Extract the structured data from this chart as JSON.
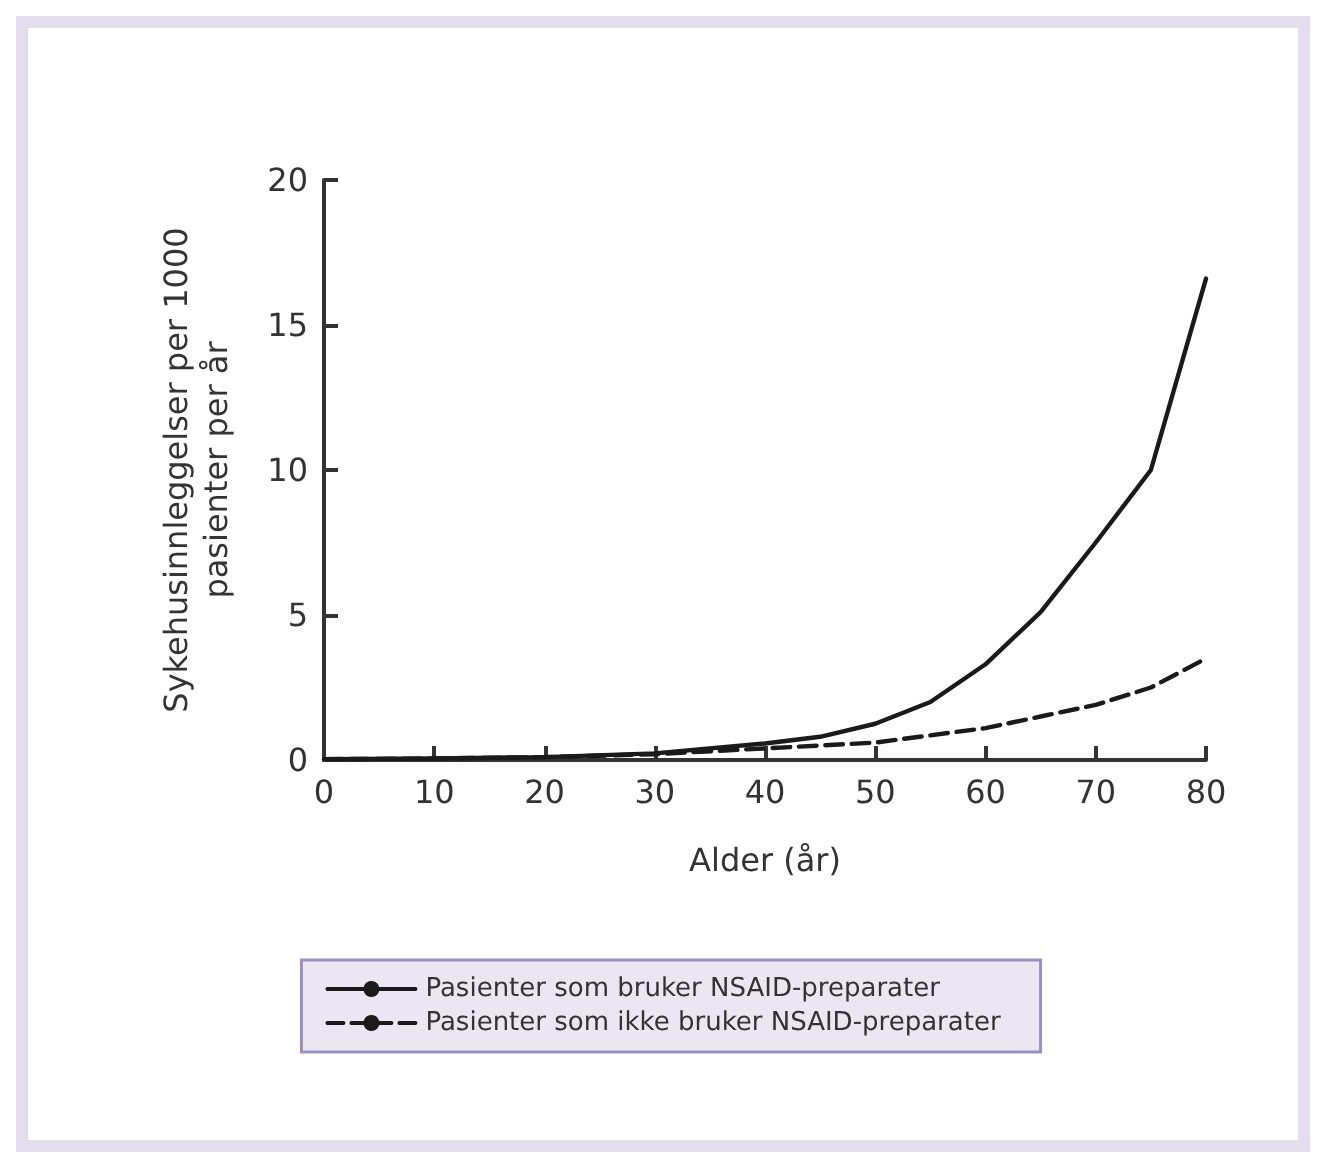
{
  "chart_data": {
    "type": "line",
    "xlabel": "Alder (år)",
    "ylabel": "Sykehusinnleggelser per 1000\npasienter per år",
    "x": [
      0,
      10,
      20,
      30,
      40,
      45,
      50,
      55,
      60,
      65,
      70,
      75,
      80
    ],
    "series": [
      {
        "name": "Pasienter som bruker NSAID-preparater",
        "color": "#1a1a1a",
        "line_style": "solid",
        "values": [
          0.03,
          0.05,
          0.1,
          0.23,
          0.57,
          0.8,
          1.25,
          2.0,
          3.3,
          5.1,
          7.5,
          10,
          16.6
        ]
      },
      {
        "name": "Pasienter som ikke bruker NSAID-preparater",
        "color": "#1a1a1a",
        "line_style": "dashed",
        "values": [
          0.03,
          0.05,
          0.1,
          0.2,
          0.4,
          0.5,
          0.6,
          0.85,
          1.1,
          1.5,
          1.9,
          2.5,
          3.5
        ]
      }
    ],
    "xlim": [
      0,
      80
    ],
    "xticks": [
      0,
      10,
      20,
      30,
      40,
      50,
      60,
      70,
      80
    ],
    "ylim": [
      0,
      20
    ],
    "yticks": [
      0,
      5,
      10,
      15,
      20
    ],
    "grid": false,
    "legend": "bottom",
    "marker": "none"
  }
}
